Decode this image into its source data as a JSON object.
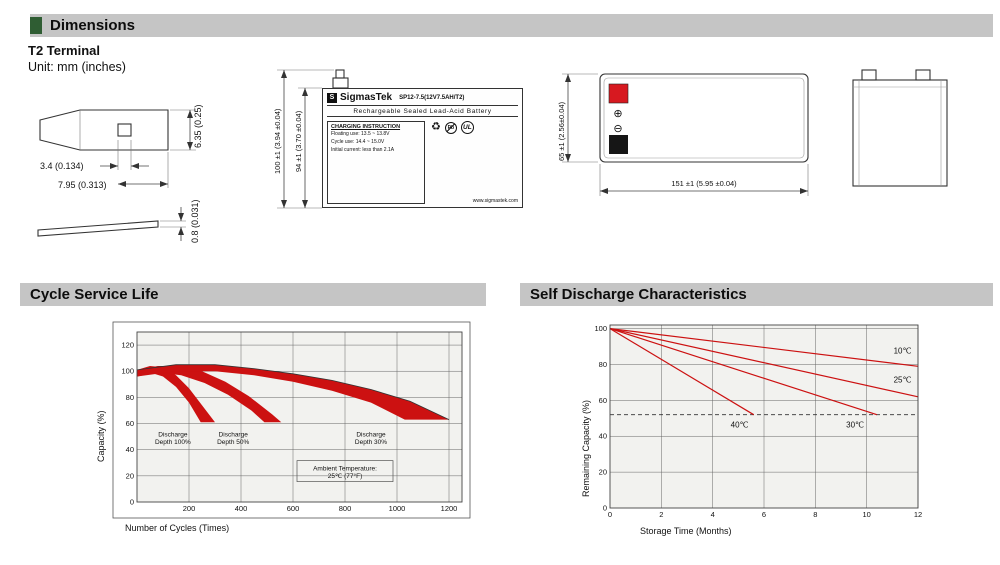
{
  "colors": {
    "header_bg": "#c5c5c5",
    "accent_green": "#2f5d33",
    "chart_red": "#cc1111",
    "positive_terminal_red": "#d71920",
    "negative_terminal_black": "#161616"
  },
  "headers": {
    "dimensions": "Dimensions",
    "cycle": "Cycle Service Life",
    "self_discharge": "Self Discharge Characteristics"
  },
  "dimensions": {
    "terminal_type": "T2 Terminal",
    "unit_note": "Unit: mm (inches)",
    "terminal_drawing": {
      "hole_width": "3.4 (0.134)",
      "tab_length": "7.95 (0.313)",
      "tab_height": "6.35 (0.25)",
      "thickness": "0.8 (0.031)"
    },
    "front_view": {
      "brand": "SigmasTek",
      "model": "SP12-7.5(12V7.5AH/T2)",
      "battery_type": "Rechargeable Sealed Lead-Acid Battery",
      "charging_title": "CHARGING INSTRUCTION",
      "charging_line1": "Floating use: 13.5 ~ 13.8V",
      "charging_line2": "Cycle use: 14.4 ~ 15.0V",
      "charging_line3": "Initial current: less than 2.1A",
      "pb_label": "Pb",
      "ul_label": "UL",
      "website": "www.sigmastek.com",
      "height_total": "100 ±1 (3.94 ±0.04)",
      "height_case": "94 ±1 (3.70 ±0.04)"
    },
    "top_view": {
      "plus_symbol": "⊕",
      "minus_symbol": "⊖",
      "width": "65 ±1 (2.56±0.04)",
      "length": "151 ±1 (5.95 ±0.04)"
    }
  },
  "chart_data": [
    {
      "id": "cycle-chart",
      "type": "area",
      "xlabel": "Number of Cycles (Times)",
      "ylabel": "Capacity (%)",
      "xlim": [
        0,
        1250
      ],
      "ylim": [
        0,
        130
      ],
      "xticks": [
        200,
        400,
        600,
        800,
        1000,
        1200
      ],
      "yticks": [
        0,
        20,
        40,
        60,
        80,
        100,
        120
      ],
      "grid": true,
      "color": "#cc1111",
      "bands": [
        {
          "name": "Discharge Depth 100%",
          "upper": [
            [
              0,
              101
            ],
            [
              50,
              104
            ],
            [
              100,
              103
            ],
            [
              150,
              97
            ],
            [
              200,
              87
            ],
            [
              250,
              74
            ],
            [
              300,
              61
            ]
          ],
          "lower": [
            [
              0,
              96
            ],
            [
              50,
              99
            ],
            [
              100,
              96
            ],
            [
              150,
              88
            ],
            [
              200,
              76
            ],
            [
              245,
              61
            ]
          ]
        },
        {
          "name": "Discharge Depth 50%",
          "upper": [
            [
              0,
              101
            ],
            [
              80,
              104
            ],
            [
              160,
              104
            ],
            [
              250,
              100
            ],
            [
              340,
              92
            ],
            [
              430,
              81
            ],
            [
              520,
              67
            ],
            [
              555,
              61
            ]
          ],
          "lower": [
            [
              0,
              96
            ],
            [
              80,
              99
            ],
            [
              170,
              97
            ],
            [
              260,
              91
            ],
            [
              350,
              82
            ],
            [
              440,
              70
            ],
            [
              490,
              61
            ]
          ]
        },
        {
          "name": "Discharge Depth 30%",
          "upper": [
            [
              0,
              101
            ],
            [
              150,
              105
            ],
            [
              300,
              105
            ],
            [
              450,
              102
            ],
            [
              600,
              98
            ],
            [
              750,
              93
            ],
            [
              900,
              86
            ],
            [
              1050,
              77
            ],
            [
              1200,
              63
            ]
          ],
          "lower": [
            [
              0,
              96
            ],
            [
              150,
              100
            ],
            [
              300,
              100
            ],
            [
              450,
              97
            ],
            [
              600,
              92
            ],
            [
              750,
              85
            ],
            [
              900,
              76
            ],
            [
              1030,
              63
            ]
          ]
        }
      ],
      "annotations": [
        {
          "lines": [
            "Discharge",
            "Depth 100%"
          ],
          "x": 138,
          "y": 50
        },
        {
          "lines": [
            "Discharge",
            "Depth 50%"
          ],
          "x": 370,
          "y": 50
        },
        {
          "lines": [
            "Discharge",
            "Depth 30%"
          ],
          "x": 900,
          "y": 50
        },
        {
          "lines": [
            "Ambient Temperature:",
            "25℃ (77°F)"
          ],
          "x": 800,
          "y": 24,
          "box": true
        }
      ]
    },
    {
      "id": "discharge-chart",
      "type": "line",
      "xlabel": "Storage Time (Months)",
      "ylabel": "Remaining Capacity (%)",
      "xlim": [
        0,
        12
      ],
      "ylim": [
        0,
        102
      ],
      "xticks": [
        0,
        2,
        4,
        6,
        8,
        10,
        12
      ],
      "yticks": [
        0,
        20,
        40,
        60,
        80,
        100
      ],
      "grid": true,
      "color": "#cc1111",
      "dashed_line_y": 52,
      "series": [
        {
          "name": "10℃",
          "points": [
            [
              0,
              100
            ],
            [
              12,
              79
            ]
          ],
          "label_at": [
            11.05,
            86
          ]
        },
        {
          "name": "25℃",
          "points": [
            [
              0,
              100
            ],
            [
              12,
              62
            ]
          ],
          "label_at": [
            11.05,
            70
          ]
        },
        {
          "name": "30℃",
          "points": [
            [
              0,
              100
            ],
            [
              10.4,
              52
            ]
          ],
          "label_at": [
            9.2,
            45
          ]
        },
        {
          "name": "40℃",
          "points": [
            [
              0,
              100
            ],
            [
              5.6,
              52
            ]
          ],
          "label_at": [
            4.7,
            45
          ]
        }
      ]
    }
  ]
}
